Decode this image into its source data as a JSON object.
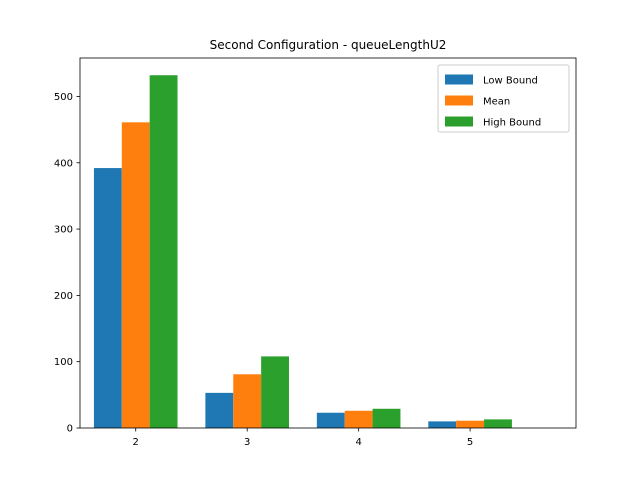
{
  "chart_data": {
    "type": "bar",
    "title": "Second Configuration - queueLengthU2",
    "xlabel": "",
    "ylabel": "",
    "categories": [
      "2",
      "3",
      "4",
      "5"
    ],
    "series": [
      {
        "name": "Low Bound",
        "values": [
          392,
          53,
          23,
          10
        ],
        "color": "#1f77b4"
      },
      {
        "name": "Mean",
        "values": [
          461,
          81,
          26,
          11
        ],
        "color": "#ff7f0e"
      },
      {
        "name": "High Bound",
        "values": [
          532,
          108,
          29,
          13
        ],
        "color": "#2ca02c"
      }
    ],
    "ylim": [
      0,
      558
    ],
    "yticks": [
      0,
      100,
      200,
      300,
      400,
      500
    ],
    "ytick_labels": [
      "0",
      "100",
      "200",
      "300",
      "400",
      "500"
    ],
    "legend_position": "top-right",
    "grid": false
  }
}
